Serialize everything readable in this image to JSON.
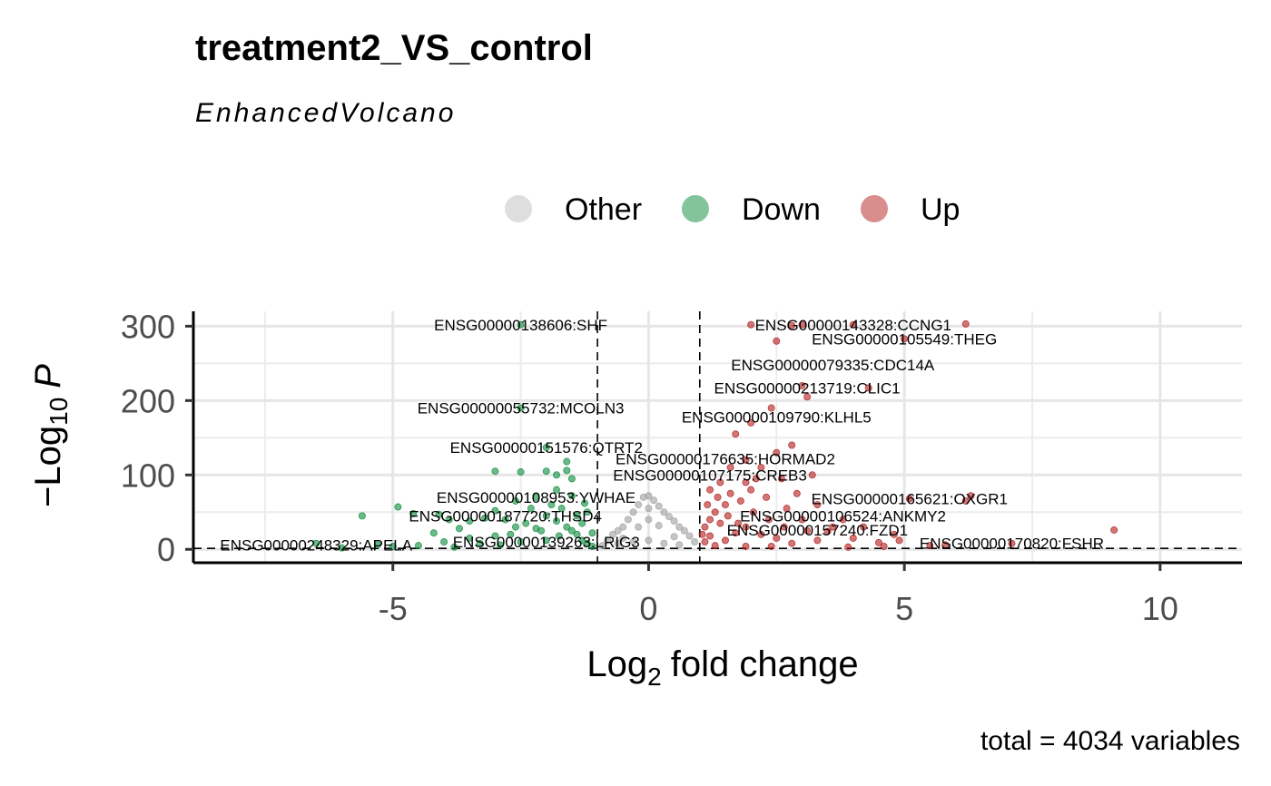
{
  "chart_data": {
    "type": "scatter",
    "title": "treatment2_VS_control",
    "subtitle": "EnhancedVolcano",
    "xlabel": "fold change",
    "xlabel_prefix": "Log",
    "xlabel_sub": "2",
    "ylabel": "P",
    "ylabel_prefix": "−Log",
    "ylabel_sub": "10",
    "xlim": [
      -8.9,
      11.6
    ],
    "ylim": [
      -18,
      320
    ],
    "x_ticks": [
      -5,
      0,
      5,
      10
    ],
    "x_tick_labels": [
      "-5",
      "0",
      "5",
      "10"
    ],
    "y_ticks": [
      0,
      100,
      200,
      300
    ],
    "y_tick_labels": [
      "0",
      "100",
      "200",
      "300"
    ],
    "fc_cutoffs": [
      -1,
      1
    ],
    "p_cutoff": 1.3,
    "grid": true,
    "legend_position": "top",
    "legend": [
      {
        "name": "Other",
        "color": "#bdbdbd"
      },
      {
        "name": "Down",
        "color": "#0a8a3a"
      },
      {
        "name": "Up",
        "color": "#b31b1b"
      }
    ],
    "caption": "total = 4034 variables",
    "series": [
      {
        "name": "Other",
        "color": "#9e9e9e",
        "points": [
          [
            -0.9,
            5
          ],
          [
            -0.8,
            12
          ],
          [
            -0.7,
            20
          ],
          [
            -0.6,
            25
          ],
          [
            -0.5,
            30
          ],
          [
            -0.4,
            40
          ],
          [
            -0.3,
            50
          ],
          [
            -0.2,
            60
          ],
          [
            -0.1,
            70
          ],
          [
            0,
            72
          ],
          [
            0.1,
            66
          ],
          [
            0.2,
            58
          ],
          [
            0.3,
            50
          ],
          [
            0.4,
            44
          ],
          [
            0.5,
            38
          ],
          [
            0.6,
            30
          ],
          [
            0.7,
            25
          ],
          [
            0.8,
            18
          ],
          [
            0.9,
            10
          ],
          [
            -0.6,
            8
          ],
          [
            -0.3,
            10
          ],
          [
            0,
            12
          ],
          [
            0.3,
            8
          ],
          [
            0.6,
            6
          ],
          [
            -0.2,
            30
          ],
          [
            0.2,
            32
          ],
          [
            -0.5,
            15
          ],
          [
            0.5,
            17
          ],
          [
            0,
            40
          ],
          [
            0,
            55
          ]
        ]
      },
      {
        "name": "Down",
        "color": "#0a8a3a",
        "points": [
          [
            -2.5,
            302
          ],
          [
            -2.5,
            190
          ],
          [
            -2.0,
            137
          ],
          [
            -1.6,
            118
          ],
          [
            -1.6,
            106
          ],
          [
            -1.5,
            95
          ],
          [
            -3.0,
            105
          ],
          [
            -2.5,
            104
          ],
          [
            -2.0,
            105
          ],
          [
            -1.8,
            100
          ],
          [
            -5.6,
            45
          ],
          [
            -4.9,
            57
          ],
          [
            -4.6,
            48
          ],
          [
            -4.1,
            47
          ],
          [
            -3.9,
            40
          ],
          [
            -3.5,
            38
          ],
          [
            -3.2,
            42
          ],
          [
            -3.0,
            52
          ],
          [
            -2.8,
            40
          ],
          [
            -2.6,
            30
          ],
          [
            -2.4,
            35
          ],
          [
            -2.2,
            28
          ],
          [
            -2.0,
            45
          ],
          [
            -1.8,
            38
          ],
          [
            -1.6,
            30
          ],
          [
            -1.5,
            25
          ],
          [
            -1.4,
            20
          ],
          [
            -1.3,
            12
          ],
          [
            -1.2,
            8
          ],
          [
            -1.1,
            4
          ],
          [
            -2.6,
            65
          ],
          [
            -2.2,
            70
          ],
          [
            -1.8,
            80
          ],
          [
            -1.5,
            72
          ],
          [
            -1.2,
            50
          ],
          [
            -3.5,
            15
          ],
          [
            -3.0,
            18
          ],
          [
            -2.5,
            10
          ],
          [
            -2.0,
            12
          ],
          [
            -4.5,
            5
          ],
          [
            -4.0,
            10
          ],
          [
            -3.8,
            3
          ],
          [
            -5.0,
            4
          ],
          [
            -6.0,
            2
          ],
          [
            -6.5,
            8
          ],
          [
            -1.9,
            60
          ],
          [
            -1.7,
            55
          ],
          [
            -1.4,
            45
          ],
          [
            -2.3,
            55
          ],
          [
            -2.7,
            20
          ],
          [
            -3.3,
            8
          ],
          [
            -1.3,
            35
          ],
          [
            -1.1,
            22
          ],
          [
            -1.25,
            62
          ],
          [
            -1.75,
            18
          ],
          [
            -2.1,
            25
          ],
          [
            -3.7,
            28
          ],
          [
            -4.2,
            22
          ],
          [
            -5.3,
            6
          ],
          [
            -2.9,
            6
          ]
        ]
      },
      {
        "name": "Up",
        "color": "#b31b1b",
        "points": [
          [
            6.2,
            303
          ],
          [
            4.0,
            302
          ],
          [
            3.0,
            302
          ],
          [
            2.0,
            302
          ],
          [
            2.8,
            301
          ],
          [
            5.0,
            283
          ],
          [
            2.5,
            280
          ],
          [
            4.3,
            217
          ],
          [
            3.1,
            205
          ],
          [
            3.0,
            220
          ],
          [
            2.4,
            190
          ],
          [
            2.0,
            170
          ],
          [
            1.7,
            155
          ],
          [
            2.8,
            140
          ],
          [
            2.5,
            130
          ],
          [
            1.9,
            120
          ],
          [
            1.6,
            110
          ],
          [
            3.2,
            100
          ],
          [
            2.1,
            95
          ],
          [
            1.4,
            90
          ],
          [
            1.2,
            80
          ],
          [
            6.2,
            65
          ],
          [
            6.3,
            72
          ],
          [
            5.1,
            68
          ],
          [
            9.1,
            26
          ],
          [
            7.1,
            8
          ],
          [
            5.5,
            5
          ],
          [
            4.9,
            12
          ],
          [
            4.5,
            9
          ],
          [
            4.0,
            15
          ],
          [
            3.5,
            24
          ],
          [
            3.0,
            40
          ],
          [
            2.7,
            55
          ],
          [
            2.3,
            70
          ],
          [
            2.0,
            80
          ],
          [
            1.8,
            65
          ],
          [
            1.5,
            60
          ],
          [
            1.3,
            50
          ],
          [
            1.2,
            40
          ],
          [
            1.1,
            30
          ],
          [
            1.05,
            20
          ],
          [
            1.1,
            10
          ],
          [
            1.3,
            5
          ],
          [
            1.5,
            12
          ],
          [
            1.7,
            22
          ],
          [
            1.9,
            30
          ],
          [
            2.2,
            20
          ],
          [
            2.5,
            15
          ],
          [
            2.8,
            8
          ],
          [
            3.3,
            12
          ],
          [
            3.6,
            30
          ],
          [
            4.2,
            30
          ],
          [
            4.8,
            20
          ],
          [
            3.8,
            40
          ],
          [
            3.3,
            60
          ],
          [
            2.9,
            75
          ],
          [
            2.6,
            95
          ],
          [
            2.2,
            110
          ],
          [
            1.9,
            90
          ],
          [
            1.6,
            75
          ],
          [
            1.4,
            35
          ],
          [
            1.2,
            18
          ],
          [
            1.15,
            60
          ],
          [
            1.35,
            70
          ],
          [
            1.55,
            45
          ],
          [
            1.75,
            35
          ],
          [
            2.05,
            50
          ],
          [
            2.35,
            40
          ],
          [
            2.65,
            30
          ],
          [
            3.1,
            25
          ],
          [
            5.8,
            6
          ],
          [
            4.6,
            4
          ],
          [
            3.9,
            3
          ],
          [
            2.4,
            4
          ],
          [
            1.9,
            4
          ]
        ]
      }
    ],
    "labels": [
      {
        "text": "ENSG00000138606:SHF",
        "x": -2.5,
        "y": 302
      },
      {
        "text": "ENSG00000143328:CCNG1",
        "x": 4.0,
        "y": 302
      },
      {
        "text": "ENSG00000105549:THEG",
        "x": 5.0,
        "y": 283
      },
      {
        "text": "ENSG00000079335:CDC14A",
        "x": 3.6,
        "y": 248
      },
      {
        "text": "ENSG00000213719:CLIC1",
        "x": 3.1,
        "y": 217
      },
      {
        "text": "ENSG00000055732:MCOLN3",
        "x": -2.5,
        "y": 190
      },
      {
        "text": "ENSG00000109790:KLHL5",
        "x": 2.5,
        "y": 178
      },
      {
        "text": "ENSG00000151576:QTRT2",
        "x": -2.0,
        "y": 137
      },
      {
        "text": "ENSG00000176635:HORMAD2",
        "x": 1.5,
        "y": 122
      },
      {
        "text": "ENSG00000107175:CREB3",
        "x": 1.2,
        "y": 100
      },
      {
        "text": "ENSG00000165621:OXGR1",
        "x": 5.1,
        "y": 68
      },
      {
        "text": "ENSG00000108953:YWHAE",
        "x": -2.2,
        "y": 70
      },
      {
        "text": "ENSG00000187720:THSD4",
        "x": -2.8,
        "y": 45
      },
      {
        "text": "ENSG00000106524:ANKMY2",
        "x": 3.8,
        "y": 45
      },
      {
        "text": "ENSG00000157240:FZD1",
        "x": 3.3,
        "y": 26
      },
      {
        "text": "ENSG00000248329:APELA",
        "x": -6.5,
        "y": 6
      },
      {
        "text": "ENSG00000139263:LRIG3",
        "x": -2.0,
        "y": 10
      },
      {
        "text": "ENSG00000170820:FSHR",
        "x": 7.1,
        "y": 8
      }
    ]
  }
}
